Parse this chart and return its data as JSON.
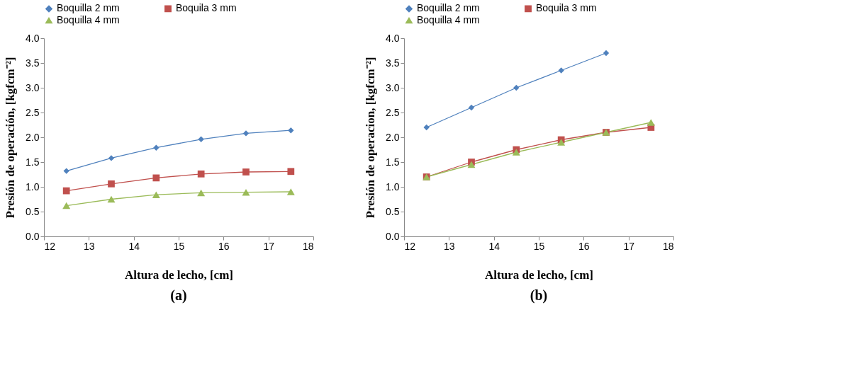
{
  "chart_data": [
    {
      "type": "line",
      "title": "(a)",
      "xlabel": "Altura de lecho, [cm]",
      "ylabel": "Presión de operación, [kgfcm⁻²]",
      "x": [
        12.5,
        13.5,
        14.5,
        15.5,
        16.5,
        17.5
      ],
      "xlim": [
        12,
        18
      ],
      "xticks": [
        12,
        13,
        14,
        15,
        16,
        17,
        18
      ],
      "ylim": [
        0,
        4
      ],
      "yticks": [
        {
          "value": 0,
          "label": "0.0"
        },
        0.5,
        {
          "value": 1,
          "label": "1.0"
        },
        1.5,
        {
          "value": 2,
          "label": "2.0"
        },
        2.5,
        {
          "value": 3,
          "label": "3.0"
        },
        3.5,
        {
          "value": 4,
          "label": "4.0"
        }
      ],
      "grid": false,
      "legend": "top",
      "series": [
        {
          "name": "Boquilla 2 mm",
          "color": "#4f81bd",
          "marker": "diamond",
          "values": [
            1.32,
            1.58,
            1.79,
            1.96,
            2.08,
            2.14
          ]
        },
        {
          "name": "Boquila 3 mm",
          "color": "#c0504d",
          "marker": "square",
          "values": [
            0.92,
            1.06,
            1.18,
            1.26,
            1.3,
            1.31
          ]
        },
        {
          "name": "Boquilla 4 mm",
          "color": "#9bbb59",
          "marker": "triangle",
          "values": [
            0.62,
            0.75,
            0.84,
            0.88,
            0.89,
            0.9
          ]
        }
      ]
    },
    {
      "type": "line",
      "title": "(b)",
      "xlabel": "Altura de lecho, [cm]",
      "ylabel": "Presión de operacion, [kgfcm⁻²]",
      "x": [
        12.5,
        13.5,
        14.5,
        15.5,
        16.5,
        17.5
      ],
      "xlim": [
        12,
        18
      ],
      "xticks": [
        12,
        13,
        14,
        15,
        16,
        17,
        18
      ],
      "ylim": [
        0,
        4
      ],
      "yticks": [
        {
          "value": 0,
          "label": "0.0"
        },
        0.5,
        {
          "value": 1,
          "label": "1.0"
        },
        1.5,
        {
          "value": 2,
          "label": "2.0"
        },
        2.5,
        {
          "value": 3,
          "label": "3.0"
        },
        3.5,
        {
          "value": 4,
          "label": "4.0"
        }
      ],
      "grid": false,
      "legend": "top",
      "series": [
        {
          "name": "Boquilla 2 mm",
          "color": "#4f81bd",
          "marker": "diamond",
          "values": [
            2.2,
            2.6,
            3.0,
            3.35,
            3.7,
            null
          ]
        },
        {
          "name": "Boquila 3 mm",
          "color": "#c0504d",
          "marker": "square",
          "values": [
            1.2,
            1.5,
            1.75,
            1.95,
            2.1,
            2.2
          ]
        },
        {
          "name": "Boquilla 4 mm",
          "color": "#9bbb59",
          "marker": "triangle",
          "values": [
            1.2,
            1.45,
            1.7,
            1.9,
            2.1,
            2.3
          ]
        }
      ]
    }
  ]
}
